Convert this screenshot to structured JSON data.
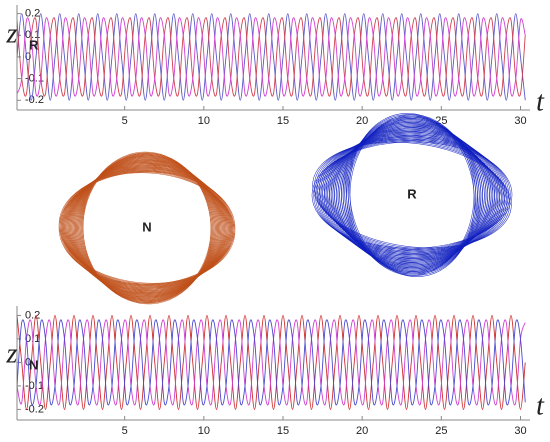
{
  "chart_data": [
    {
      "type": "line",
      "y_label": "z",
      "y_label_subscript": "R",
      "y_label_subscript_color": "#1f3fd0",
      "x_label": "t",
      "xlim": [
        -1.8,
        30.6
      ],
      "ylim": [
        -0.245,
        0.24
      ],
      "xticks": [
        5,
        10,
        15,
        20,
        25,
        30
      ],
      "yticks": [
        -0.2,
        -0.1,
        0,
        0.1,
        0.2
      ],
      "x": [
        -1.8,
        -1.5,
        -1.2,
        -0.9,
        -0.6,
        -0.3,
        0,
        0.3,
        0.6,
        0.9,
        1.2,
        1.5,
        1.8,
        2.1,
        2.4,
        2.7,
        3,
        3.3,
        3.6,
        3.9,
        4.2,
        4.5,
        4.8,
        5.1,
        5.4,
        5.7,
        6,
        6.3,
        6.6,
        6.9,
        7.2,
        7.5,
        7.8,
        8.1,
        8.4,
        8.7,
        9,
        9.3,
        9.6,
        9.9,
        10.2,
        10.5,
        10.8,
        11.1,
        11.4,
        11.7,
        12,
        12.3,
        12.6,
        12.9,
        13.2,
        13.5,
        13.8,
        14.1,
        14.4,
        14.7,
        15,
        15.3,
        15.6,
        15.9,
        16.2,
        16.5,
        16.8,
        17.1,
        17.4,
        17.7,
        18,
        18.3,
        18.6,
        18.9,
        19.2,
        19.5,
        19.8,
        20.1,
        20.4,
        20.7,
        21,
        21.3,
        21.6,
        21.9,
        22.2,
        22.5,
        22.8,
        23.1,
        23.4,
        23.7,
        24,
        24.3,
        24.6,
        24.9,
        25.2,
        25.5,
        25.8,
        26.1,
        26.4,
        26.7,
        27,
        27.3,
        27.6,
        27.9,
        28.2,
        28.5,
        28.8,
        29.1,
        29.4,
        29.7,
        30,
        30.3
      ],
      "series": [
        {
          "color": "#5a5ac8",
          "values": [
            0,
            0.2,
            0,
            -0.2,
            0,
            0.2,
            0,
            -0.2,
            0,
            0.2,
            0,
            -0.2,
            0,
            0.2,
            0,
            -0.2,
            0,
            0.2,
            0,
            -0.2,
            0,
            0.2,
            0,
            -0.2,
            0,
            0.2,
            0,
            -0.2,
            0,
            0.2,
            0,
            -0.2,
            0,
            0.2,
            0,
            -0.2,
            0,
            0.2,
            0,
            -0.2,
            0,
            0.2,
            0,
            -0.2,
            0,
            0.2,
            0,
            -0.2,
            0,
            0.2,
            0,
            -0.2,
            0,
            0.2,
            0,
            -0.2,
            0,
            0.2,
            0,
            -0.2,
            0,
            0.2,
            0,
            -0.2,
            0,
            0.2,
            0,
            -0.2,
            0,
            0.2,
            0,
            -0.2,
            0,
            0.2,
            0,
            -0.2,
            0,
            0.2,
            0,
            -0.2,
            0,
            0.2,
            0,
            -0.2,
            0,
            0.2,
            0,
            -0.2,
            0,
            0.2,
            0,
            -0.2,
            0,
            0.2,
            0,
            -0.2,
            0,
            0.2,
            0,
            -0.2,
            0,
            0.2,
            0,
            -0.2,
            0,
            0.2,
            0,
            -0.2
          ]
        },
        {
          "color": "#d04050",
          "values": [
            0.17,
            -0.1,
            -0.17,
            0.1,
            0.17,
            -0.1,
            -0.17,
            0.1,
            0.17,
            -0.1,
            -0.17,
            0.1,
            0.17,
            -0.1,
            -0.17,
            0.1,
            0.17,
            -0.1,
            -0.17,
            0.1,
            0.17,
            -0.1,
            -0.17,
            0.1,
            0.17,
            -0.1,
            -0.17,
            0.1,
            0.17,
            -0.1,
            -0.17,
            0.1,
            0.17,
            -0.1,
            -0.17,
            0.1,
            0.17,
            -0.1,
            -0.17,
            0.1,
            0.17,
            -0.1,
            -0.17,
            0.1,
            0.17,
            -0.1,
            -0.17,
            0.1,
            0.17,
            -0.1,
            -0.17,
            0.1,
            0.17,
            -0.1,
            -0.17,
            0.1,
            0.17,
            -0.1,
            -0.17,
            0.1,
            0.17,
            -0.1,
            -0.17,
            0.1,
            0.17,
            -0.1,
            -0.17,
            0.1,
            0.17,
            -0.1,
            -0.17,
            0.1,
            0.17,
            -0.1,
            -0.17,
            0.1,
            0.17,
            -0.1,
            -0.17,
            0.1,
            0.17,
            -0.1,
            -0.17,
            0.1,
            0.17,
            -0.1,
            -0.17,
            0.1,
            0.17,
            -0.1,
            -0.17,
            0.1,
            0.17,
            -0.1,
            -0.17,
            0.1,
            0.17,
            -0.1,
            -0.17,
            0.1,
            0.17,
            -0.1,
            -0.17,
            0.1,
            0.17,
            -0.1,
            -0.17,
            0.1
          ]
        },
        {
          "color": "#d040d0",
          "values": [
            -0.17,
            -0.1,
            0.17,
            0.1,
            -0.17,
            -0.1,
            0.17,
            0.1,
            -0.17,
            -0.1,
            0.17,
            0.1,
            -0.17,
            -0.1,
            0.17,
            0.1,
            -0.17,
            -0.1,
            0.17,
            0.1,
            -0.17,
            -0.1,
            0.17,
            0.1,
            -0.17,
            -0.1,
            0.17,
            0.1,
            -0.17,
            -0.1,
            0.17,
            0.1,
            -0.17,
            -0.1,
            0.17,
            0.1,
            -0.17,
            -0.1,
            0.17,
            0.1,
            -0.17,
            -0.1,
            0.17,
            0.1,
            -0.17,
            -0.1,
            0.17,
            0.1,
            -0.17,
            -0.1,
            0.17,
            0.1,
            -0.17,
            -0.1,
            0.17,
            0.1,
            -0.17,
            -0.1,
            0.17,
            0.1,
            -0.17,
            -0.1,
            0.17,
            0.1,
            -0.17,
            -0.1,
            0.17,
            0.1,
            -0.17,
            -0.1,
            0.17,
            0.1,
            -0.17,
            -0.1,
            0.17,
            0.1,
            -0.17,
            -0.1,
            0.17,
            0.1,
            -0.17,
            -0.1,
            0.17,
            0.1,
            -0.17,
            -0.1,
            0.17,
            0.1,
            -0.17,
            -0.1,
            0.17,
            0.1,
            -0.17,
            -0.1,
            0.17,
            0.1,
            -0.17,
            -0.1,
            0.17,
            0.1,
            -0.17,
            -0.1,
            0.17,
            0.1,
            -0.17,
            -0.1,
            0.17,
            0.1
          ]
        }
      ]
    },
    {
      "type": "orbit",
      "label": "N",
      "color": "#c0501a",
      "label_color": "#e01010"
    },
    {
      "type": "orbit",
      "label": "R",
      "color": "#1020c0",
      "label_color": "#2a5a9a"
    },
    {
      "type": "line",
      "y_label": "z",
      "y_label_subscript": "N",
      "y_label_subscript_color": "#e01010",
      "x_label": "t",
      "xlim": [
        -1.8,
        30.6
      ],
      "ylim": [
        -0.245,
        0.24
      ],
      "xticks": [
        5,
        10,
        15,
        20,
        25,
        30
      ],
      "yticks": [
        -0.2,
        -0.1,
        0,
        0.1,
        0.2
      ],
      "x": [
        -1.8,
        -1.5,
        -1.2,
        -0.9,
        -0.6,
        -0.3,
        0,
        0.3,
        0.6,
        0.9,
        1.2,
        1.5,
        1.8,
        2.1,
        2.4,
        2.7,
        3,
        3.3,
        3.6,
        3.9,
        4.2,
        4.5,
        4.8,
        5.1,
        5.4,
        5.7,
        6,
        6.3,
        6.6,
        6.9,
        7.2,
        7.5,
        7.8,
        8.1,
        8.4,
        8.7,
        9,
        9.3,
        9.6,
        9.9,
        10.2,
        10.5,
        10.8,
        11.1,
        11.4,
        11.7,
        12,
        12.3,
        12.6,
        12.9,
        13.2,
        13.5,
        13.8,
        14.1,
        14.4,
        14.7,
        15,
        15.3,
        15.6,
        15.9,
        16.2,
        16.5,
        16.8,
        17.1,
        17.4,
        17.7,
        18,
        18.3,
        18.6,
        18.9,
        19.2,
        19.5,
        19.8,
        20.1,
        20.4,
        20.7,
        21,
        21.3,
        21.6,
        21.9,
        22.2,
        22.5,
        22.8,
        23.1,
        23.4,
        23.7,
        24,
        24.3,
        24.6,
        24.9,
        25.2,
        25.5,
        25.8,
        26.1,
        26.4,
        26.7,
        27,
        27.3,
        27.6,
        27.9,
        28.2,
        28.5,
        28.8,
        29.1,
        29.4,
        29.7,
        30,
        30.3
      ],
      "series": [
        {
          "color": "#d03030",
          "values": [
            0.2,
            0,
            -0.2,
            0,
            0.2,
            0,
            -0.2,
            0,
            0.2,
            0,
            -0.2,
            0,
            0.2,
            0,
            -0.2,
            0,
            0.2,
            0,
            -0.2,
            0,
            0.2,
            0,
            -0.2,
            0,
            0.2,
            0,
            -0.2,
            0,
            0.2,
            0,
            -0.2,
            0,
            0.2,
            0,
            -0.2,
            0,
            0.2,
            0,
            -0.2,
            0,
            0.2,
            0,
            -0.2,
            0,
            0.2,
            0,
            -0.2,
            0,
            0.2,
            0,
            -0.2,
            0,
            0.2,
            0,
            -0.2,
            0,
            0.2,
            0,
            -0.2,
            0,
            0.2,
            0,
            -0.2,
            0,
            0.2,
            0,
            -0.2,
            0,
            0.2,
            0,
            -0.2,
            0,
            0.2,
            0,
            -0.2,
            0,
            0.2,
            0,
            -0.2,
            0,
            0.2,
            0,
            -0.2,
            0,
            0.2,
            0,
            -0.2,
            0,
            0.2,
            0,
            -0.2,
            0,
            0.2,
            0,
            -0.2,
            0,
            0.2,
            0,
            -0.2,
            0,
            0.2,
            0,
            -0.2,
            0,
            0.2,
            0,
            -0.2,
            0
          ]
        },
        {
          "color": "#d040d0",
          "values": [
            -0.1,
            -0.17,
            0.1,
            0.17,
            -0.1,
            -0.17,
            0.1,
            0.17,
            -0.1,
            -0.17,
            0.1,
            0.17,
            -0.1,
            -0.17,
            0.1,
            0.17,
            -0.1,
            -0.17,
            0.1,
            0.17,
            -0.1,
            -0.17,
            0.1,
            0.17,
            -0.1,
            -0.17,
            0.1,
            0.17,
            -0.1,
            -0.17,
            0.1,
            0.17,
            -0.1,
            -0.17,
            0.1,
            0.17,
            -0.1,
            -0.17,
            0.1,
            0.17,
            -0.1,
            -0.17,
            0.1,
            0.17,
            -0.1,
            -0.17,
            0.1,
            0.17,
            -0.1,
            -0.17,
            0.1,
            0.17,
            -0.1,
            -0.17,
            0.1,
            0.17,
            -0.1,
            -0.17,
            0.1,
            0.17,
            -0.1,
            -0.17,
            0.1,
            0.17,
            -0.1,
            -0.17,
            0.1,
            0.17,
            -0.1,
            -0.17,
            0.1,
            0.17,
            -0.1,
            -0.17,
            0.1,
            0.17,
            -0.1,
            -0.17,
            0.1,
            0.17,
            -0.1,
            -0.17,
            0.1,
            0.17,
            -0.1,
            -0.17,
            0.1,
            0.17,
            -0.1,
            -0.17,
            0.1,
            0.17,
            -0.1,
            -0.17,
            0.1,
            0.17,
            -0.1,
            -0.17,
            0.1,
            0.17,
            -0.1,
            -0.17,
            0.1,
            0.17,
            -0.1,
            -0.17,
            0.1,
            0.17
          ]
        },
        {
          "color": "#4a4ad0",
          "values": [
            -0.1,
            0.17,
            0.1,
            -0.17,
            -0.1,
            0.17,
            0.1,
            -0.17,
            -0.1,
            0.17,
            0.1,
            -0.17,
            -0.1,
            0.17,
            0.1,
            -0.17,
            -0.1,
            0.17,
            0.1,
            -0.17,
            -0.1,
            0.17,
            0.1,
            -0.17,
            -0.1,
            0.17,
            0.1,
            -0.17,
            -0.1,
            0.17,
            0.1,
            -0.17,
            -0.1,
            0.17,
            0.1,
            -0.17,
            -0.1,
            0.17,
            0.1,
            -0.17,
            -0.1,
            0.17,
            0.1,
            -0.17,
            -0.1,
            0.17,
            0.1,
            -0.17,
            -0.1,
            0.17,
            0.1,
            -0.17,
            -0.1,
            0.17,
            0.1,
            -0.17,
            -0.1,
            0.17,
            0.1,
            -0.17,
            -0.1,
            0.17,
            0.1,
            -0.17,
            -0.1,
            0.17,
            0.1,
            -0.17,
            -0.1,
            0.17,
            0.1,
            -0.17,
            -0.1,
            0.17,
            0.1,
            -0.17,
            -0.1,
            0.17,
            0.1,
            -0.17,
            -0.1,
            0.17,
            0.1,
            -0.17,
            -0.1,
            0.17,
            0.1,
            -0.17,
            -0.1,
            0.17,
            0.1,
            -0.17,
            -0.1,
            0.17,
            0.1,
            -0.17,
            -0.1,
            0.17,
            0.1,
            -0.17,
            -0.1,
            0.17,
            0.1,
            -0.17,
            -0.1,
            0.17,
            0.1,
            -0.17
          ]
        }
      ]
    }
  ]
}
